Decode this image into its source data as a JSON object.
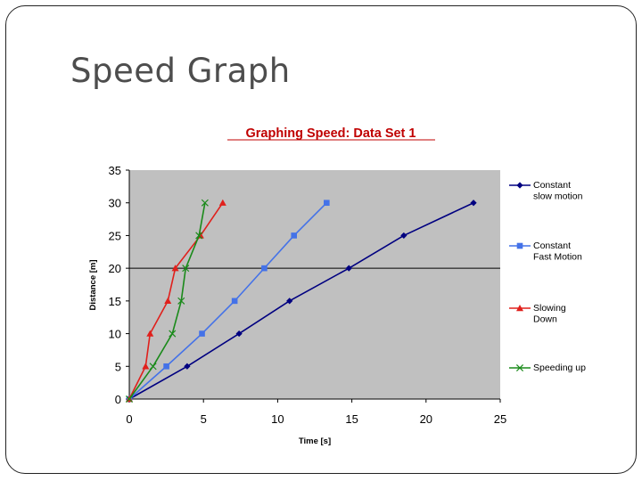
{
  "slide": {
    "title": "Speed Graph"
  },
  "chart_data": {
    "type": "line",
    "title": "Graphing Speed: Data Set 1",
    "xlabel": "Time [s]",
    "ylabel": "Distance [m]",
    "xlim": [
      0,
      25
    ],
    "ylim": [
      0,
      35
    ],
    "xticks": [
      0,
      5,
      10,
      15,
      20,
      25
    ],
    "yticks": [
      0,
      5,
      10,
      15,
      20,
      25,
      30,
      35
    ],
    "grid": "horizontal line at y=20",
    "legend_position": "right",
    "plot_background": "#c0c0c0",
    "series": [
      {
        "name": "Constant slow motion",
        "color": "#000080",
        "marker": "diamond",
        "x": [
          0,
          3.9,
          7.4,
          10.8,
          14.8,
          18.5,
          23.2
        ],
        "y": [
          0,
          5,
          10,
          15,
          20,
          25,
          30
        ]
      },
      {
        "name": "Constant Fast Motion",
        "color": "#4472e8",
        "marker": "square",
        "x": [
          0,
          2.5,
          4.9,
          7.1,
          9.1,
          11.1,
          13.3
        ],
        "y": [
          0,
          5,
          10,
          15,
          20,
          25,
          30
        ]
      },
      {
        "name": "Slowing Down",
        "color": "#e0201c",
        "marker": "triangle",
        "x": [
          0,
          1.1,
          1.4,
          2.6,
          3.1,
          4.8,
          6.3
        ],
        "y": [
          0,
          5,
          10,
          15,
          20,
          25,
          30
        ]
      },
      {
        "name": "Speeding up",
        "color": "#1a8a1a",
        "marker": "x",
        "x": [
          0,
          1.6,
          2.9,
          3.5,
          3.8,
          4.7,
          5.1
        ],
        "y": [
          0,
          5,
          10,
          15,
          20,
          25,
          30
        ]
      }
    ]
  }
}
